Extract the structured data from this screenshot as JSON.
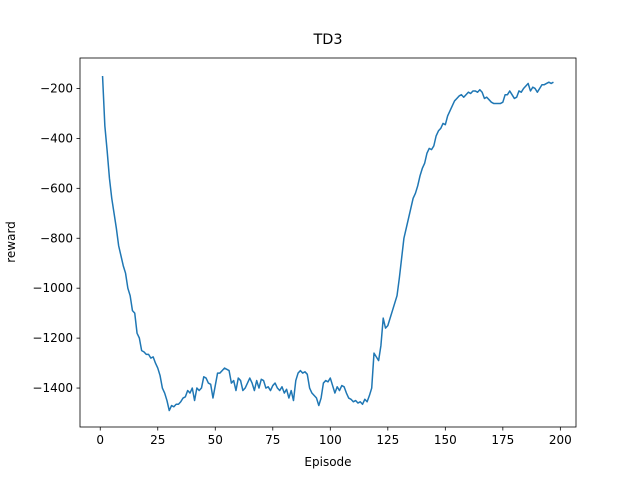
{
  "chart_data": {
    "type": "line",
    "title": "TD3",
    "x_label": "Episode",
    "y_label": "reward",
    "xlim": [
      -8.8,
      206.8
    ],
    "ylim": [
      -1556,
      -78
    ],
    "xticks": [
      0,
      25,
      50,
      75,
      100,
      125,
      150,
      175,
      200
    ],
    "yticks": [
      {
        "value": -1400,
        "label": "−1400"
      },
      {
        "value": -1200,
        "label": "−1200"
      },
      {
        "value": -1000,
        "label": "−1000"
      },
      {
        "value": -800,
        "label": "−800"
      },
      {
        "value": -600,
        "label": "−600"
      },
      {
        "value": -400,
        "label": "−400"
      },
      {
        "value": -200,
        "label": "−200"
      }
    ],
    "grid": false,
    "x": [
      1,
      2,
      3,
      4,
      5,
      6,
      7,
      8,
      9,
      10,
      11,
      12,
      13,
      14,
      15,
      16,
      17,
      18,
      19,
      20,
      21,
      22,
      23,
      24,
      25,
      26,
      27,
      28,
      29,
      30,
      31,
      32,
      33,
      34,
      35,
      36,
      37,
      38,
      39,
      40,
      41,
      42,
      43,
      44,
      45,
      46,
      47,
      48,
      49,
      50,
      51,
      52,
      53,
      54,
      55,
      56,
      57,
      58,
      59,
      60,
      61,
      62,
      63,
      64,
      65,
      66,
      67,
      68,
      69,
      70,
      71,
      72,
      73,
      74,
      75,
      76,
      77,
      78,
      79,
      80,
      81,
      82,
      83,
      84,
      85,
      86,
      87,
      88,
      89,
      90,
      91,
      92,
      93,
      94,
      95,
      96,
      97,
      98,
      99,
      100,
      101,
      102,
      103,
      104,
      105,
      106,
      107,
      108,
      109,
      110,
      111,
      112,
      113,
      114,
      115,
      116,
      117,
      118,
      119,
      120,
      121,
      122,
      123,
      124,
      125,
      126,
      127,
      128,
      129,
      130,
      131,
      132,
      133,
      134,
      135,
      136,
      137,
      138,
      139,
      140,
      141,
      142,
      143,
      144,
      145,
      146,
      147,
      148,
      149,
      150,
      151,
      152,
      153,
      154,
      155,
      156,
      157,
      158,
      159,
      160,
      161,
      162,
      163,
      164,
      165,
      166,
      167,
      168,
      169,
      170,
      171,
      172,
      173,
      174,
      175,
      176,
      177,
      178,
      179,
      180,
      181,
      182,
      183,
      184,
      185,
      186,
      187,
      188,
      189,
      190,
      191,
      192,
      193,
      194,
      195,
      196,
      197
    ],
    "series": [
      {
        "color": "#1f77b4",
        "values": [
          -150,
          -350,
          -450,
          -560,
          -640,
          -700,
          -760,
          -830,
          -870,
          -910,
          -940,
          -1000,
          -1030,
          -1090,
          -1100,
          -1180,
          -1200,
          -1250,
          -1255,
          -1265,
          -1265,
          -1280,
          -1275,
          -1300,
          -1320,
          -1350,
          -1400,
          -1420,
          -1450,
          -1490,
          -1470,
          -1475,
          -1465,
          -1465,
          -1455,
          -1440,
          -1435,
          -1410,
          -1420,
          -1400,
          -1450,
          -1400,
          -1410,
          -1400,
          -1355,
          -1360,
          -1380,
          -1385,
          -1440,
          -1390,
          -1340,
          -1340,
          -1330,
          -1320,
          -1325,
          -1330,
          -1380,
          -1370,
          -1410,
          -1360,
          -1370,
          -1410,
          -1400,
          -1380,
          -1360,
          -1380,
          -1410,
          -1370,
          -1400,
          -1365,
          -1370,
          -1400,
          -1395,
          -1410,
          -1390,
          -1380,
          -1400,
          -1410,
          -1395,
          -1420,
          -1405,
          -1440,
          -1410,
          -1450,
          -1370,
          -1340,
          -1330,
          -1340,
          -1335,
          -1345,
          -1400,
          -1420,
          -1430,
          -1440,
          -1470,
          -1440,
          -1380,
          -1370,
          -1375,
          -1360,
          -1390,
          -1420,
          -1395,
          -1410,
          -1390,
          -1395,
          -1420,
          -1440,
          -1445,
          -1455,
          -1450,
          -1460,
          -1455,
          -1465,
          -1445,
          -1455,
          -1430,
          -1400,
          -1260,
          -1275,
          -1290,
          -1230,
          -1120,
          -1160,
          -1150,
          -1120,
          -1090,
          -1060,
          -1030,
          -960,
          -880,
          -800,
          -760,
          -720,
          -680,
          -640,
          -620,
          -590,
          -550,
          -520,
          -500,
          -460,
          -440,
          -445,
          -430,
          -390,
          -370,
          -360,
          -340,
          -345,
          -310,
          -290,
          -270,
          -250,
          -240,
          -230,
          -225,
          -235,
          -225,
          -215,
          -220,
          -210,
          -210,
          -215,
          -205,
          -215,
          -240,
          -235,
          -245,
          -255,
          -260,
          -260,
          -260,
          -260,
          -255,
          -225,
          -225,
          -210,
          -225,
          -240,
          -235,
          -210,
          -215,
          -200,
          -190,
          -180,
          -210,
          -195,
          -200,
          -215,
          -200,
          -185,
          -185,
          -180,
          -175,
          -180,
          -175
        ]
      }
    ]
  }
}
